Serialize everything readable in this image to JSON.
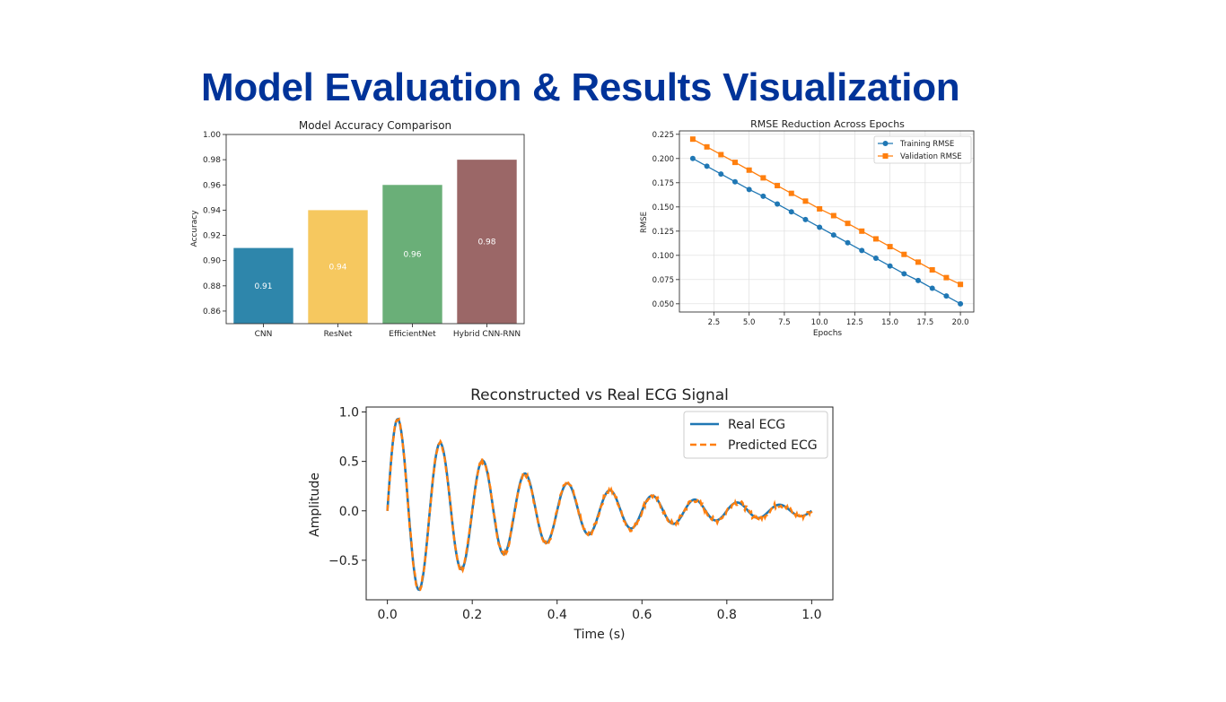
{
  "slide": {
    "title": "Model Evaluation & Results Visualization",
    "title_color": "#003399"
  },
  "chart_data": [
    {
      "type": "bar",
      "title": "Model Accuracy Comparison",
      "xlabel": "",
      "ylabel": "Accuracy",
      "categories": [
        "CNN",
        "ResNet",
        "EfficientNet",
        "Hybrid CNN-RNN"
      ],
      "values": [
        0.91,
        0.94,
        0.96,
        0.98
      ],
      "value_labels": [
        "0.91",
        "0.94",
        "0.96",
        "0.98"
      ],
      "colors": [
        "#2e86ab",
        "#f6c85f",
        "#6aaf78",
        "#9b6767"
      ],
      "ylim": [
        0.85,
        1.0
      ],
      "yticks": [
        0.86,
        0.88,
        0.9,
        0.92,
        0.94,
        0.96,
        0.98,
        1.0
      ],
      "ytick_labels": [
        "0.86",
        "0.88",
        "0.90",
        "0.92",
        "0.94",
        "0.96",
        "0.98",
        "1.00"
      ],
      "grid": false
    },
    {
      "type": "line",
      "title": "RMSE Reduction Across Epochs",
      "xlabel": "Epochs",
      "ylabel": "RMSE",
      "x": [
        1,
        2,
        3,
        4,
        5,
        6,
        7,
        8,
        9,
        10,
        11,
        12,
        13,
        14,
        15,
        16,
        17,
        18,
        19,
        20
      ],
      "series": [
        {
          "name": "Training RMSE",
          "color": "#1f77b4",
          "marker": "circle",
          "values": [
            0.2,
            0.192,
            0.184,
            0.176,
            0.168,
            0.161,
            0.153,
            0.145,
            0.137,
            0.129,
            0.121,
            0.113,
            0.105,
            0.097,
            0.089,
            0.081,
            0.074,
            0.066,
            0.058,
            0.05
          ]
        },
        {
          "name": "Validation RMSE",
          "color": "#ff7f0e",
          "marker": "square",
          "values": [
            0.22,
            0.212,
            0.204,
            0.196,
            0.188,
            0.18,
            0.172,
            0.164,
            0.156,
            0.148,
            0.141,
            0.133,
            0.125,
            0.117,
            0.109,
            0.101,
            0.093,
            0.085,
            0.077,
            0.07
          ]
        }
      ],
      "xlim": [
        0.05,
        20.95
      ],
      "ylim": [
        0.0415,
        0.2285
      ],
      "xticks": [
        2.5,
        5.0,
        7.5,
        10.0,
        12.5,
        15.0,
        17.5,
        20.0
      ],
      "xtick_labels": [
        "2.5",
        "5.0",
        "7.5",
        "10.0",
        "12.5",
        "15.0",
        "17.5",
        "20.0"
      ],
      "yticks": [
        0.05,
        0.075,
        0.1,
        0.125,
        0.15,
        0.175,
        0.2,
        0.225
      ],
      "ytick_labels": [
        "0.050",
        "0.075",
        "0.100",
        "0.125",
        "0.150",
        "0.175",
        "0.200",
        "0.225"
      ],
      "grid": true,
      "legend": "top-right"
    },
    {
      "type": "line",
      "title": "Reconstructed vs Real ECG Signal",
      "xlabel": "Time (s)",
      "ylabel": "Amplitude",
      "signal": {
        "frequency_hz": 10,
        "decay_rate": 3.0,
        "amplitude": 1.0,
        "duration_s": 1.0,
        "samples": 400,
        "predicted_noise": 0.03
      },
      "series": [
        {
          "name": "Real ECG",
          "color": "#1f77b4",
          "style": "solid"
        },
        {
          "name": "Predicted ECG",
          "color": "#ff7f0e",
          "style": "dashed"
        }
      ],
      "xlim": [
        -0.05,
        1.05
      ],
      "ylim": [
        -0.9,
        1.05
      ],
      "xticks": [
        0.0,
        0.2,
        0.4,
        0.6,
        0.8,
        1.0
      ],
      "xtick_labels": [
        "0.0",
        "0.2",
        "0.4",
        "0.6",
        "0.8",
        "1.0"
      ],
      "yticks": [
        -0.5,
        0.0,
        0.5,
        1.0
      ],
      "ytick_labels": [
        "−0.5",
        "0.0",
        "0.5",
        "1.0"
      ],
      "grid": false,
      "legend": "top-right"
    }
  ]
}
